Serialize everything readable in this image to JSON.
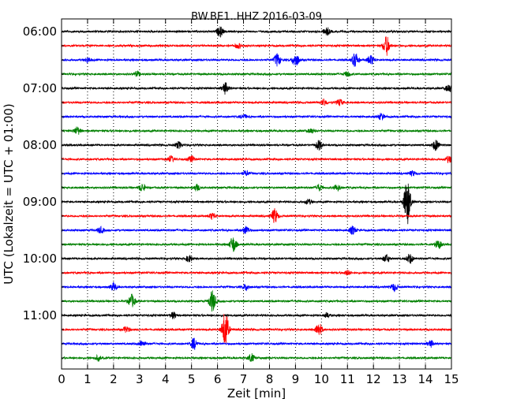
{
  "chart_data": {
    "type": "line",
    "title": "BW.BE1..HHZ 2016-03-09",
    "xlabel": "Zeit  [min]",
    "ylabel": "UTC (Lokalzeit = UTC + 01:00)",
    "xlim": [
      0,
      15
    ],
    "x_ticks": [
      "0",
      "1",
      "2",
      "3",
      "4",
      "5",
      "6",
      "7",
      "8",
      "9",
      "10",
      "11",
      "12",
      "13",
      "14",
      "15"
    ],
    "y_tick_labels": [
      "06:00",
      "07:00",
      "08:00",
      "09:00",
      "10:00",
      "11:00"
    ],
    "grid": "vertical dotted at each minute",
    "trace_colors": [
      "#000000",
      "#ff0000",
      "#0000ff",
      "#008000"
    ],
    "rows": [
      {
        "time": "06:00",
        "events": [
          [
            6.1,
            6
          ],
          [
            10.2,
            5
          ]
        ]
      },
      {
        "time": "06:15",
        "events": [
          [
            12.5,
            12
          ],
          [
            6.8,
            3
          ]
        ]
      },
      {
        "time": "06:30",
        "events": [
          [
            8.3,
            8
          ],
          [
            9.0,
            9
          ],
          [
            11.3,
            9
          ],
          [
            11.9,
            6
          ],
          [
            1.0,
            3
          ]
        ]
      },
      {
        "time": "06:45",
        "events": [
          [
            2.9,
            3
          ],
          [
            11.0,
            3
          ]
        ]
      },
      {
        "time": "07:00",
        "events": [
          [
            6.3,
            7
          ],
          [
            14.9,
            5
          ]
        ]
      },
      {
        "time": "07:15",
        "events": [
          [
            10.1,
            4
          ],
          [
            10.7,
            4
          ]
        ]
      },
      {
        "time": "07:30",
        "events": [
          [
            12.3,
            4
          ],
          [
            7.0,
            3
          ]
        ]
      },
      {
        "time": "07:45",
        "events": [
          [
            0.6,
            5
          ],
          [
            9.6,
            3
          ]
        ]
      },
      {
        "time": "08:00",
        "events": [
          [
            4.5,
            4
          ],
          [
            9.9,
            6
          ],
          [
            14.4,
            7
          ]
        ]
      },
      {
        "time": "08:15",
        "events": [
          [
            4.2,
            4
          ],
          [
            5.0,
            4
          ],
          [
            14.9,
            4
          ]
        ]
      },
      {
        "time": "08:30",
        "events": [
          [
            7.1,
            3
          ],
          [
            13.5,
            3
          ]
        ]
      },
      {
        "time": "08:45",
        "events": [
          [
            3.1,
            5
          ],
          [
            5.2,
            4
          ],
          [
            9.9,
            4
          ],
          [
            10.6,
            4
          ]
        ]
      },
      {
        "time": "09:00",
        "events": [
          [
            13.3,
            30
          ],
          [
            9.5,
            3
          ]
        ]
      },
      {
        "time": "09:15",
        "events": [
          [
            8.2,
            9
          ],
          [
            5.8,
            4
          ]
        ]
      },
      {
        "time": "09:30",
        "events": [
          [
            1.5,
            4
          ],
          [
            7.1,
            5
          ],
          [
            11.2,
            5
          ]
        ]
      },
      {
        "time": "09:45",
        "events": [
          [
            6.6,
            10
          ],
          [
            14.5,
            5
          ]
        ]
      },
      {
        "time": "10:00",
        "events": [
          [
            4.9,
            4
          ],
          [
            12.5,
            5
          ],
          [
            13.4,
            6
          ]
        ]
      },
      {
        "time": "10:15",
        "events": [
          [
            11.0,
            3
          ]
        ]
      },
      {
        "time": "10:30",
        "events": [
          [
            2.0,
            5
          ],
          [
            7.1,
            4
          ],
          [
            12.8,
            5
          ]
        ]
      },
      {
        "time": "10:45",
        "events": [
          [
            2.7,
            8
          ],
          [
            5.8,
            14
          ]
        ]
      },
      {
        "time": "11:00",
        "events": [
          [
            4.3,
            4
          ],
          [
            10.2,
            3
          ]
        ]
      },
      {
        "time": "11:15",
        "events": [
          [
            6.3,
            24
          ],
          [
            9.9,
            8
          ],
          [
            2.5,
            4
          ]
        ]
      },
      {
        "time": "11:30",
        "events": [
          [
            5.1,
            7
          ],
          [
            3.1,
            4
          ],
          [
            14.2,
            4
          ]
        ]
      },
      {
        "time": "11:45",
        "events": [
          [
            1.4,
            3
          ],
          [
            7.3,
            5
          ]
        ]
      }
    ]
  }
}
